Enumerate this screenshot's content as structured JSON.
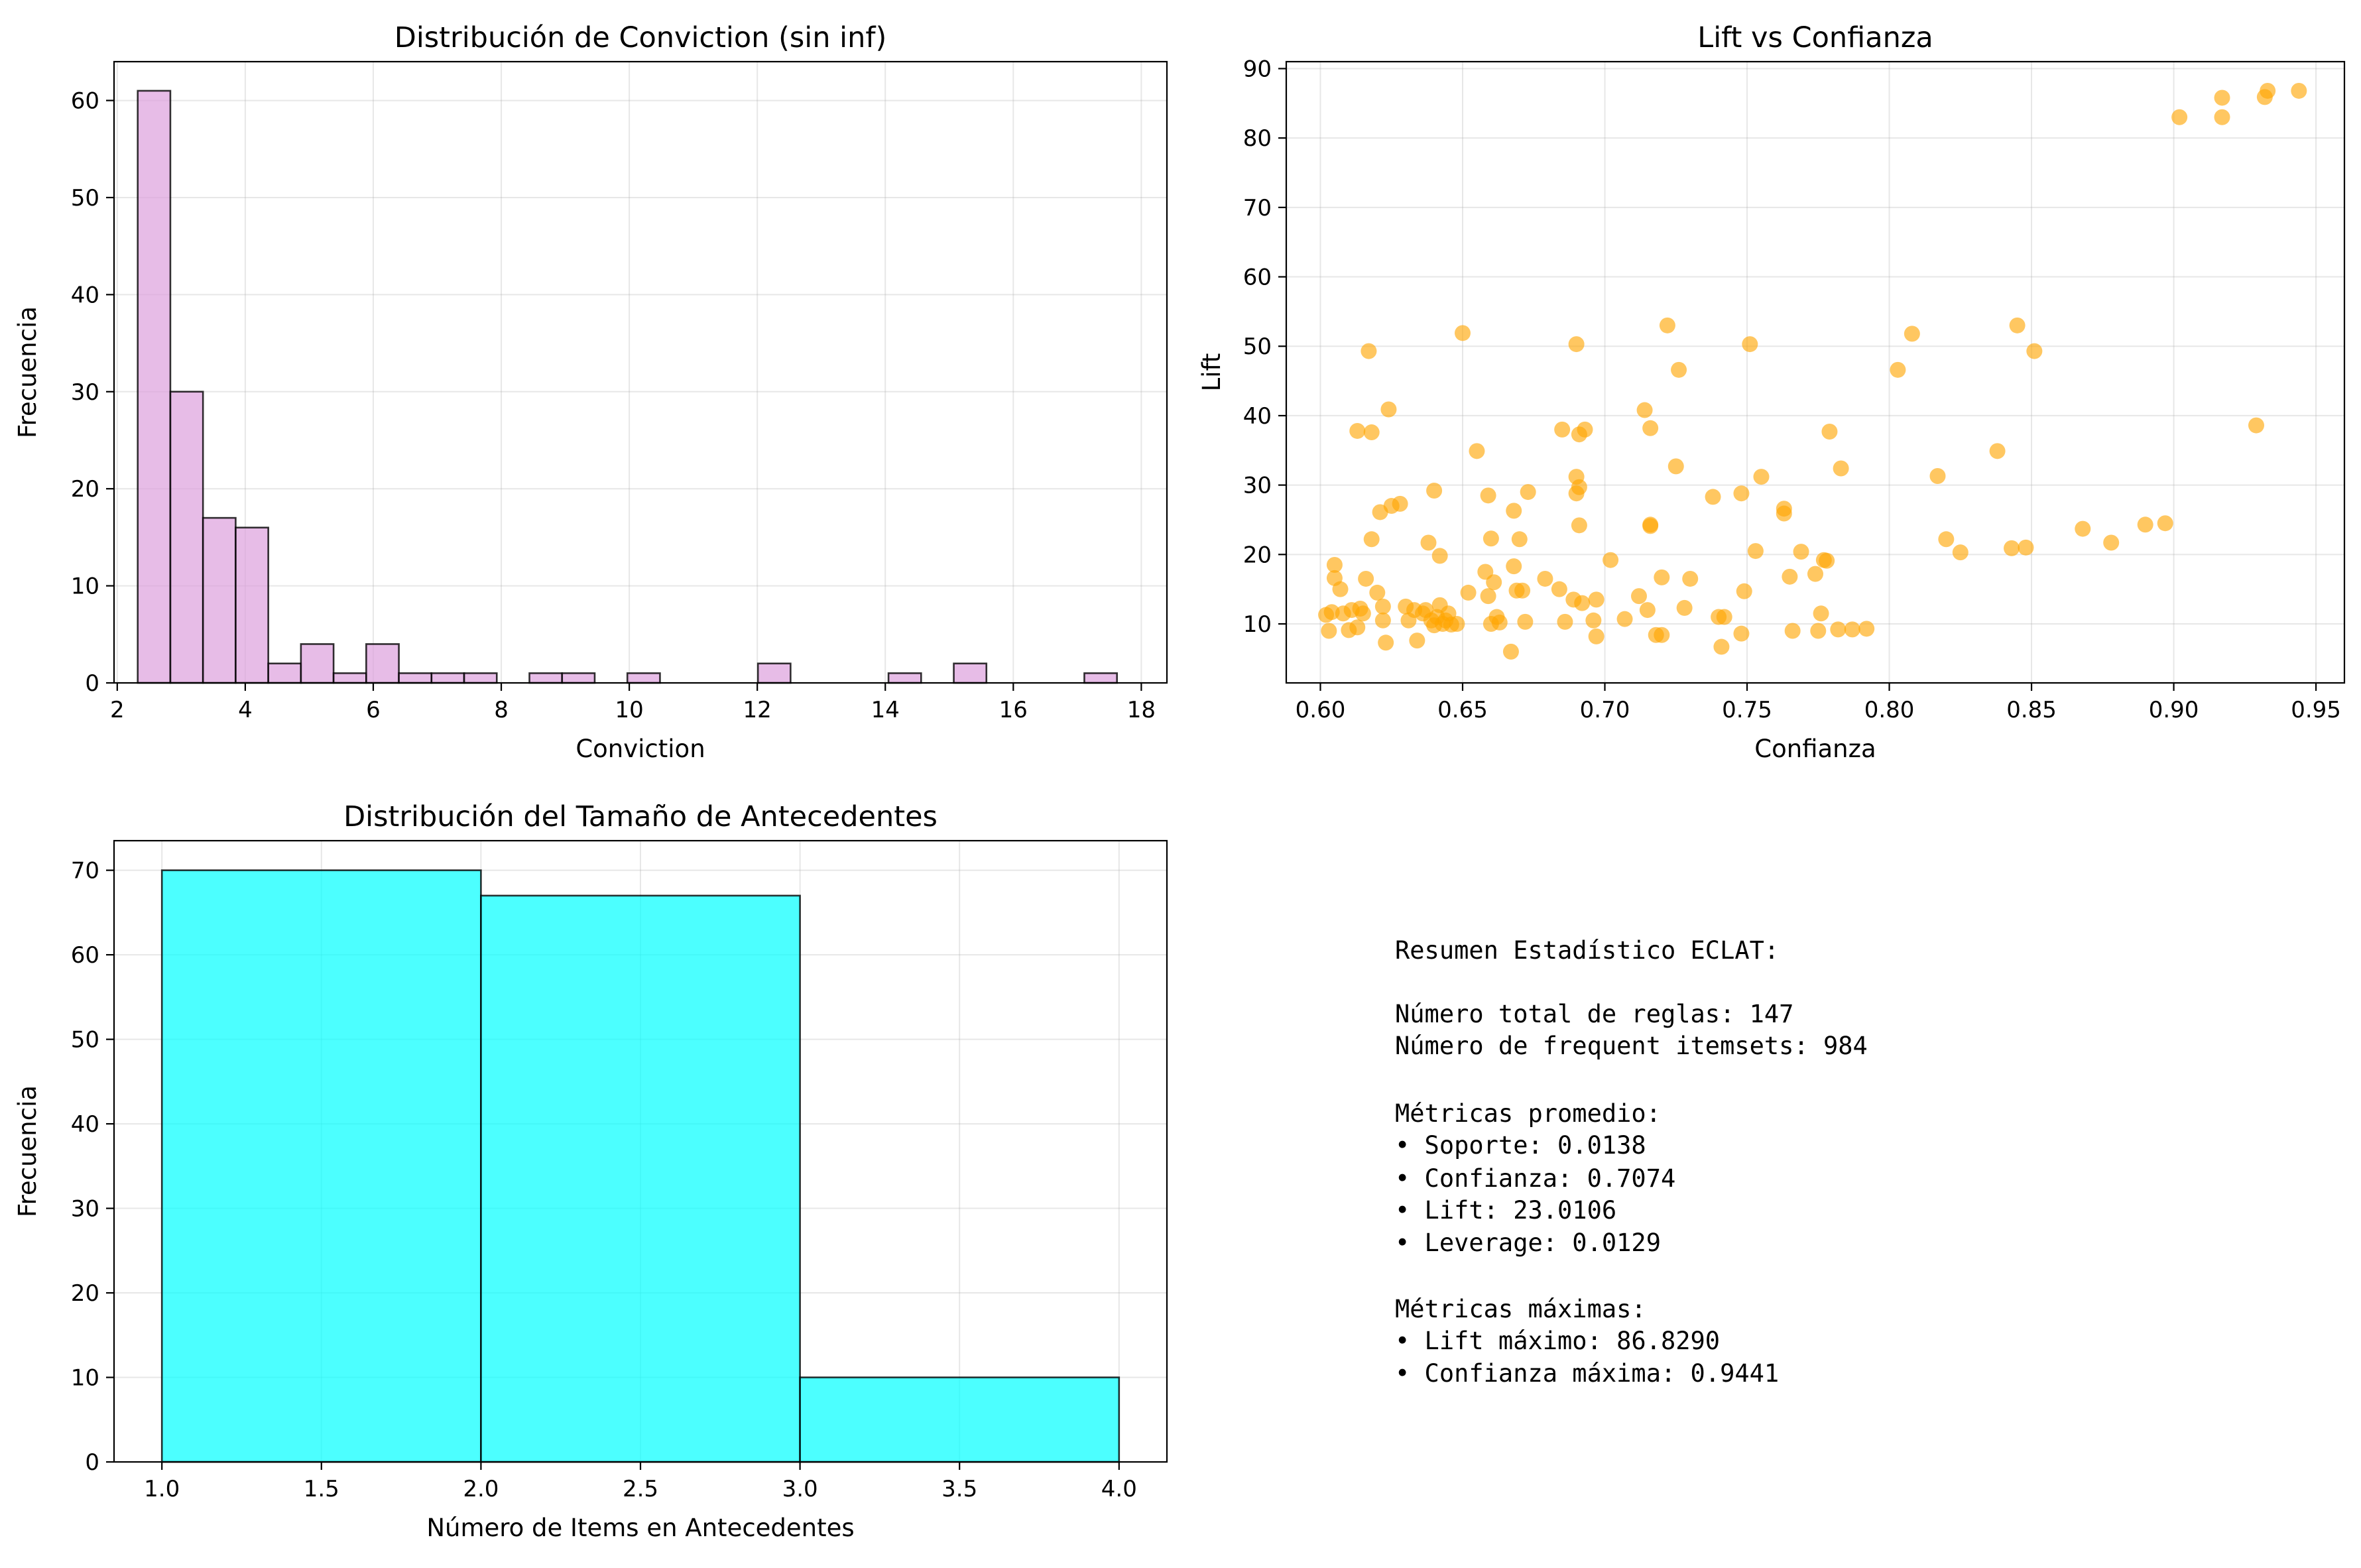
{
  "chart_data": [
    {
      "type": "bar",
      "title": "Distribución de Conviction (sin inf)",
      "xlabel": "Conviction",
      "ylabel": "Frecuencia",
      "xlim": [
        1.95,
        18.4
      ],
      "ylim": [
        0,
        64
      ],
      "xticks": [
        2,
        4,
        6,
        8,
        10,
        12,
        14,
        16,
        18
      ],
      "yticks": [
        0,
        10,
        20,
        30,
        40,
        50,
        60
      ],
      "grid": true,
      "color": "#DDA0DD",
      "edgecolor": "#000000",
      "bin_start": 2.32,
      "bin_width": 0.51,
      "values": [
        61,
        30,
        17,
        16,
        2,
        4,
        1,
        4,
        1,
        1,
        1,
        0,
        1,
        1,
        0,
        1,
        0,
        0,
        0,
        2,
        0,
        0,
        0,
        1,
        0,
        2,
        0,
        0,
        0,
        1
      ]
    },
    {
      "type": "scatter",
      "title": "Lift vs Confianza",
      "xlabel": "Confianza",
      "ylabel": "Lift",
      "xlim": [
        0.588,
        0.96
      ],
      "ylim": [
        1.5,
        91
      ],
      "xticks": [
        0.6,
        0.65,
        0.7,
        0.75,
        0.8,
        0.85,
        0.9,
        0.95
      ],
      "xtick_labels": [
        "0.60",
        "0.65",
        "0.70",
        "0.75",
        "0.80",
        "0.85",
        "0.90",
        "0.95"
      ],
      "yticks": [
        10,
        20,
        30,
        40,
        50,
        60,
        70,
        80,
        90
      ],
      "grid": true,
      "color": "#FFA500",
      "points": [
        [
          0.602,
          11.3
        ],
        [
          0.603,
          9.0
        ],
        [
          0.604,
          11.7
        ],
        [
          0.605,
          18.5
        ],
        [
          0.605,
          16.6
        ],
        [
          0.607,
          15.0
        ],
        [
          0.608,
          11.5
        ],
        [
          0.61,
          9.1
        ],
        [
          0.611,
          12.0
        ],
        [
          0.613,
          37.8
        ],
        [
          0.613,
          9.5
        ],
        [
          0.614,
          12.2
        ],
        [
          0.615,
          11.5
        ],
        [
          0.616,
          16.5
        ],
        [
          0.617,
          49.3
        ],
        [
          0.618,
          37.6
        ],
        [
          0.618,
          22.2
        ],
        [
          0.62,
          14.5
        ],
        [
          0.621,
          26.1
        ],
        [
          0.622,
          10.5
        ],
        [
          0.622,
          12.5
        ],
        [
          0.623,
          7.3
        ],
        [
          0.624,
          40.9
        ],
        [
          0.625,
          27.0
        ],
        [
          0.628,
          27.3
        ],
        [
          0.63,
          12.5
        ],
        [
          0.631,
          10.5
        ],
        [
          0.633,
          12.0
        ],
        [
          0.634,
          7.6
        ],
        [
          0.636,
          11.5
        ],
        [
          0.637,
          12.0
        ],
        [
          0.638,
          21.7
        ],
        [
          0.639,
          10.5
        ],
        [
          0.64,
          29.2
        ],
        [
          0.64,
          9.8
        ],
        [
          0.641,
          11.0
        ],
        [
          0.642,
          19.8
        ],
        [
          0.642,
          12.7
        ],
        [
          0.643,
          10.0
        ],
        [
          0.644,
          10.5
        ],
        [
          0.645,
          11.5
        ],
        [
          0.646,
          9.9
        ],
        [
          0.648,
          10.0
        ],
        [
          0.65,
          51.9
        ],
        [
          0.652,
          14.5
        ],
        [
          0.655,
          34.9
        ],
        [
          0.658,
          17.5
        ],
        [
          0.659,
          28.5
        ],
        [
          0.659,
          14.0
        ],
        [
          0.66,
          22.3
        ],
        [
          0.66,
          10.0
        ],
        [
          0.661,
          16.0
        ],
        [
          0.662,
          11.0
        ],
        [
          0.663,
          10.2
        ],
        [
          0.667,
          6.0
        ],
        [
          0.668,
          26.3
        ],
        [
          0.668,
          18.3
        ],
        [
          0.669,
          14.8
        ],
        [
          0.67,
          22.2
        ],
        [
          0.671,
          14.8
        ],
        [
          0.672,
          10.3
        ],
        [
          0.673,
          29.0
        ],
        [
          0.679,
          16.5
        ],
        [
          0.684,
          15.0
        ],
        [
          0.685,
          38.0
        ],
        [
          0.686,
          10.3
        ],
        [
          0.689,
          13.5
        ],
        [
          0.69,
          28.8
        ],
        [
          0.69,
          31.2
        ],
        [
          0.69,
          50.3
        ],
        [
          0.691,
          29.7
        ],
        [
          0.691,
          37.3
        ],
        [
          0.691,
          24.2
        ],
        [
          0.692,
          13.0
        ],
        [
          0.693,
          38.0
        ],
        [
          0.696,
          10.5
        ],
        [
          0.697,
          13.5
        ],
        [
          0.697,
          8.2
        ],
        [
          0.702,
          19.2
        ],
        [
          0.707,
          10.7
        ],
        [
          0.712,
          14.0
        ],
        [
          0.714,
          40.8
        ],
        [
          0.715,
          12.0
        ],
        [
          0.716,
          38.2
        ],
        [
          0.716,
          24.3
        ],
        [
          0.716,
          24.1
        ],
        [
          0.718,
          8.4
        ],
        [
          0.72,
          16.7
        ],
        [
          0.72,
          8.4
        ],
        [
          0.722,
          53.0
        ],
        [
          0.725,
          32.7
        ],
        [
          0.726,
          46.6
        ],
        [
          0.728,
          12.3
        ],
        [
          0.73,
          16.5
        ],
        [
          0.738,
          28.3
        ],
        [
          0.74,
          11.0
        ],
        [
          0.741,
          6.7
        ],
        [
          0.742,
          11.0
        ],
        [
          0.748,
          28.8
        ],
        [
          0.748,
          8.6
        ],
        [
          0.749,
          14.7
        ],
        [
          0.751,
          50.3
        ],
        [
          0.753,
          20.5
        ],
        [
          0.755,
          31.2
        ],
        [
          0.763,
          26.6
        ],
        [
          0.763,
          25.9
        ],
        [
          0.765,
          16.8
        ],
        [
          0.766,
          9.0
        ],
        [
          0.769,
          20.4
        ],
        [
          0.774,
          17.2
        ],
        [
          0.775,
          9.0
        ],
        [
          0.776,
          11.5
        ],
        [
          0.777,
          19.2
        ],
        [
          0.778,
          19.1
        ],
        [
          0.779,
          37.7
        ],
        [
          0.782,
          9.2
        ],
        [
          0.783,
          32.4
        ],
        [
          0.787,
          9.2
        ],
        [
          0.792,
          9.3
        ],
        [
          0.803,
          46.6
        ],
        [
          0.808,
          51.8
        ],
        [
          0.817,
          31.3
        ],
        [
          0.82,
          22.2
        ],
        [
          0.825,
          20.3
        ],
        [
          0.838,
          34.9
        ],
        [
          0.843,
          20.9
        ],
        [
          0.845,
          53.0
        ],
        [
          0.848,
          21.0
        ],
        [
          0.851,
          49.3
        ],
        [
          0.868,
          23.7
        ],
        [
          0.878,
          21.7
        ],
        [
          0.89,
          24.3
        ],
        [
          0.897,
          24.5
        ],
        [
          0.902,
          83.0
        ],
        [
          0.917,
          83.0
        ],
        [
          0.917,
          85.8
        ],
        [
          0.929,
          38.6
        ],
        [
          0.932,
          85.9
        ],
        [
          0.933,
          86.8
        ],
        [
          0.944,
          86.8
        ]
      ]
    },
    {
      "type": "bar",
      "title": "Distribución del Tamaño de Antecedentes",
      "xlabel": "Número de Items en Antecedentes",
      "ylabel": "Frecuencia",
      "xlim": [
        0.85,
        4.15
      ],
      "ylim": [
        0,
        73.5
      ],
      "xticks": [
        1.0,
        1.5,
        2.0,
        2.5,
        3.0,
        3.5,
        4.0
      ],
      "xtick_labels": [
        "1.0",
        "1.5",
        "2.0",
        "2.5",
        "3.0",
        "3.5",
        "4.0"
      ],
      "yticks": [
        0,
        10,
        20,
        30,
        40,
        50,
        60,
        70
      ],
      "grid": true,
      "color": "#00FFFF",
      "edgecolor": "#000000",
      "bins": [
        [
          1,
          2
        ],
        [
          2,
          3
        ],
        [
          3,
          4
        ]
      ],
      "values": [
        70,
        67,
        10
      ]
    }
  ],
  "summary": {
    "lines": [
      "Resumen Estadístico ECLAT:",
      "",
      "Número total de reglas: 147",
      "Número de frequent itemsets: 984",
      "",
      "Métricas promedio:",
      "• Soporte: 0.0138",
      "• Confianza: 0.7074",
      "• Lift: 23.0106",
      "• Leverage: 0.0129",
      "",
      "Métricas máximas:",
      "• Lift máximo: 86.8290",
      "• Confianza máxima: 0.9441"
    ]
  }
}
